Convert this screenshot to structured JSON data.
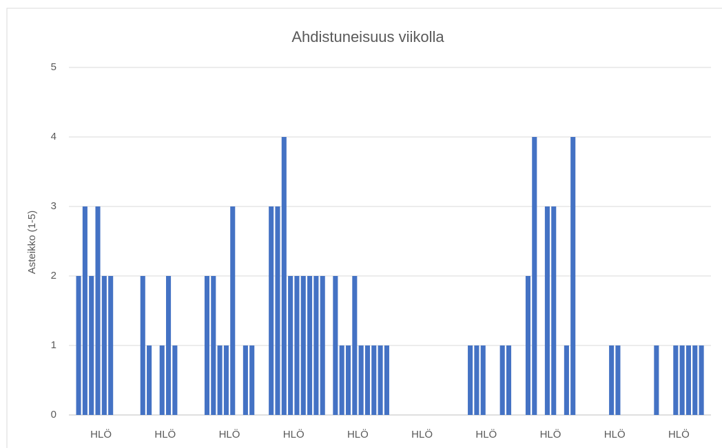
{
  "chart_data": {
    "type": "bar",
    "title": "Ahdistuneisuus viikolla",
    "y_label": "Asteikko (1-5)",
    "categories": [
      "HLÖ",
      "HLÖ",
      "HLÖ",
      "HLÖ",
      "HLÖ",
      "HLÖ",
      "HLÖ",
      "HLÖ",
      "HLÖ",
      "HLÖ"
    ],
    "values": [
      [
        0,
        2,
        3,
        2,
        3,
        2,
        2,
        0,
        0,
        0
      ],
      [
        0,
        2,
        1,
        0,
        1,
        2,
        1,
        0,
        0,
        0
      ],
      [
        0,
        2,
        2,
        1,
        1,
        3,
        0,
        1,
        1,
        0
      ],
      [
        0,
        3,
        3,
        4,
        2,
        2,
        2,
        2,
        2,
        2
      ],
      [
        0,
        2,
        1,
        1,
        2,
        1,
        1,
        1,
        1,
        1
      ],
      [
        0,
        0,
        0,
        0,
        0,
        0,
        0,
        0,
        0,
        0
      ],
      [
        0,
        0,
        1,
        1,
        1,
        0,
        0,
        1,
        1,
        0
      ],
      [
        0,
        2,
        4,
        0,
        3,
        3,
        0,
        1,
        4,
        0
      ],
      [
        0,
        0,
        0,
        0,
        1,
        1,
        0,
        0,
        0,
        0
      ],
      [
        0,
        1,
        0,
        0,
        1,
        1,
        1,
        1,
        1,
        0
      ]
    ],
    "color": "#4472c4",
    "ylim": [
      0,
      5
    ],
    "yticks": [
      0,
      1,
      2,
      3,
      4,
      5
    ],
    "grid": true
  }
}
